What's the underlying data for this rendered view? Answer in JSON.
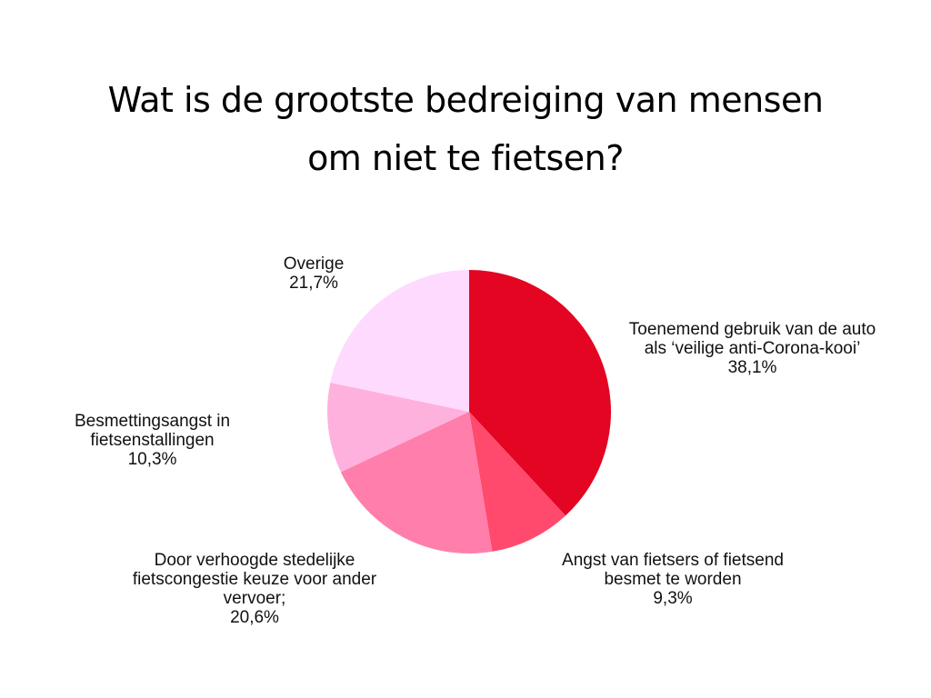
{
  "title": {
    "line1": "Wat is de grootste bedreiging van mensen",
    "line2": "om niet te fietsen?"
  },
  "labels": [
    {
      "lines": [
        "Toenemend gebruik van de auto",
        "als ‘veilige anti-Corona-kooi’"
      ],
      "pct": "38,1%"
    },
    {
      "lines": [
        "Angst van fietsers of fietsend",
        "besmet te worden"
      ],
      "pct": "9,3%"
    },
    {
      "lines": [
        "Door verhoogde stedelijke",
        "fietscongestie keuze voor ander",
        "vervoer;"
      ],
      "pct": "20,6%"
    },
    {
      "lines": [
        "Besmettingsangst in",
        "fietsenstallingen"
      ],
      "pct": "10,3%"
    },
    {
      "lines": [
        "Overige"
      ],
      "pct": "21,7%"
    }
  ],
  "chart_data": {
    "type": "pie",
    "title": "Wat is de grootste bedreiging van mensen om niet te fietsen?",
    "categories": [
      "Toenemend gebruik van de auto als ‘veilige anti-Corona-kooi’",
      "Angst van fietsers of fietsend besmet te worden",
      "Door verhoogde stedelijke fietscongestie keuze voor ander vervoer;",
      "Besmettingsangst in fietsenstallingen",
      "Overige"
    ],
    "values": [
      38.1,
      9.3,
      20.6,
      10.3,
      21.7
    ],
    "colors": [
      "#E30522",
      "#FF4A6D",
      "#FF7EAB",
      "#FFB1DE",
      "#FFDAFF"
    ],
    "start_angle": "12 o'clock",
    "direction": "clockwise",
    "legend": "none (direct labels)"
  }
}
